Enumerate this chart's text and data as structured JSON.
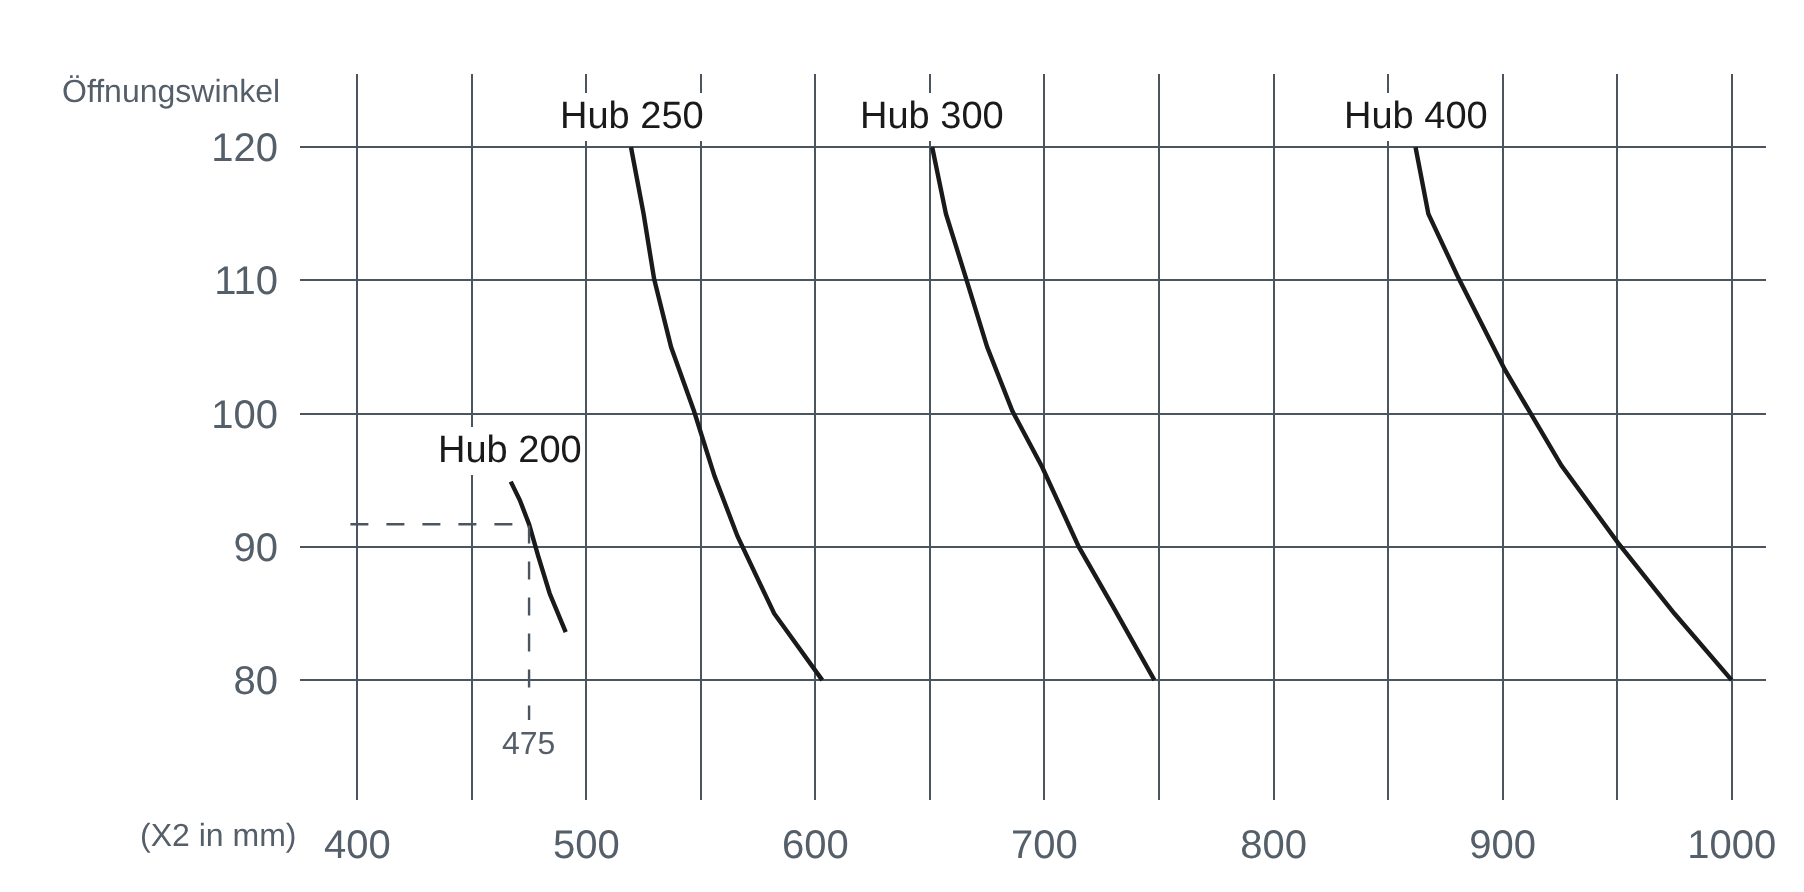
{
  "chart_data": {
    "type": "line",
    "xlabel": "(X2 in mm)",
    "ylabel": "Öffnungswinkel",
    "series": [
      {
        "name": "Hub 200",
        "color": "#1a1a1a",
        "x": [
          467,
          471,
          475,
          479,
          484,
          491
        ],
        "values": [
          94.9,
          93.5,
          91.7,
          89.3,
          86.5,
          83.6
        ]
      },
      {
        "name": "Hub 250",
        "color": "#1a1a1a",
        "x": [
          519.5,
          525,
          529.6,
          537,
          547,
          556,
          566,
          582,
          603
        ],
        "values": [
          120,
          115,
          110.1,
          105,
          100.2,
          95.3,
          90.8,
          85,
          80
        ]
      },
      {
        "name": "Hub 300",
        "color": "#1a1a1a",
        "x": [
          651,
          657,
          665.7,
          675,
          686,
          699,
          715,
          730,
          748
        ],
        "values": [
          120,
          115,
          110.2,
          105,
          100.2,
          96,
          90,
          85.5,
          80
        ]
      },
      {
        "name": "Hub 400",
        "color": "#1a1a1a",
        "x": [
          862,
          867.6,
          880.7,
          901,
          925.7,
          950.4,
          975,
          1000
        ],
        "values": [
          120,
          115,
          110.2,
          103.3,
          96.1,
          90.3,
          85,
          80
        ]
      },
      {
        "type": "line",
        "line_style": "dashed",
        "color": "#4a5560",
        "x": [
          397,
          475,
          475
        ],
        "values": [
          91.7,
          91.7,
          77
        ]
      }
    ],
    "annotations": [
      {
        "text": "475",
        "x": 475,
        "y": 77
      }
    ],
    "xlim": [
      375,
      1015
    ],
    "ylim": [
      71,
      125.5
    ],
    "xticks": [
      400,
      {
        "value": 450,
        "label": null
      },
      500,
      {
        "value": 550,
        "label": null
      },
      600,
      {
        "value": 650,
        "label": null
      },
      700,
      {
        "value": 750,
        "label": null
      },
      800,
      {
        "value": 850,
        "label": null
      },
      900,
      {
        "value": 950,
        "label": null
      },
      1000
    ],
    "yticks": [
      80,
      90,
      100,
      110,
      120
    ],
    "grid": true,
    "legend": false,
    "line_style": "solid",
    "marker": "none"
  }
}
